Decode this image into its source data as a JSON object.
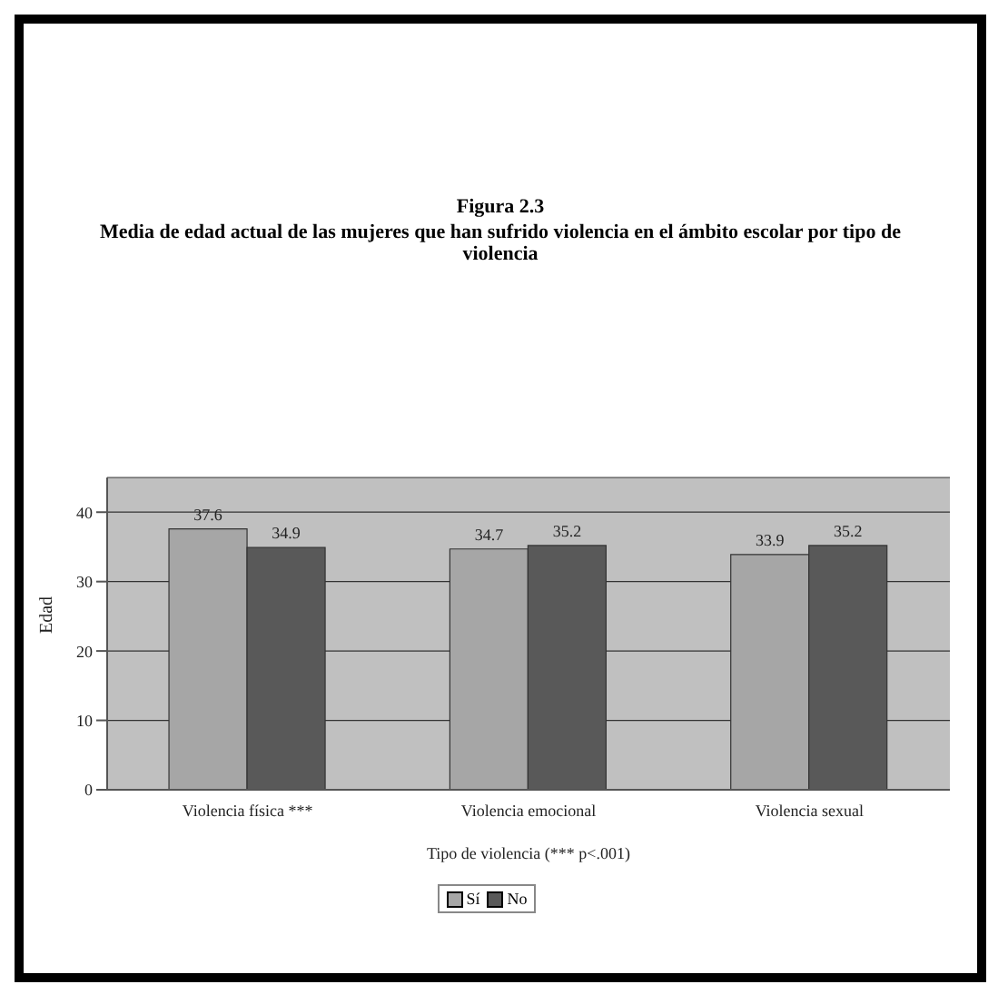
{
  "chart_data": {
    "type": "bar",
    "title": "Figura 2.3",
    "subtitle": "Media de edad actual de las mujeres que han sufrido violencia en el ámbito escolar por tipo de violencia",
    "xlabel": "Tipo de violencia (*** p<.001)",
    "ylabel": "Edad",
    "categories": [
      "Violencia física ***",
      "Violencia emocional",
      "Violencia sexual"
    ],
    "series": [
      {
        "name": "Sí",
        "color": "#a6a6a6",
        "values": [
          37.6,
          34.7,
          33.9
        ]
      },
      {
        "name": "No",
        "color": "#595959",
        "values": [
          34.9,
          35.2,
          35.2
        ]
      }
    ],
    "ylim": [
      0,
      45
    ],
    "yticks": [
      0,
      10,
      20,
      30,
      40
    ],
    "grid": "y",
    "legend": "bottom",
    "data_labels": true
  }
}
